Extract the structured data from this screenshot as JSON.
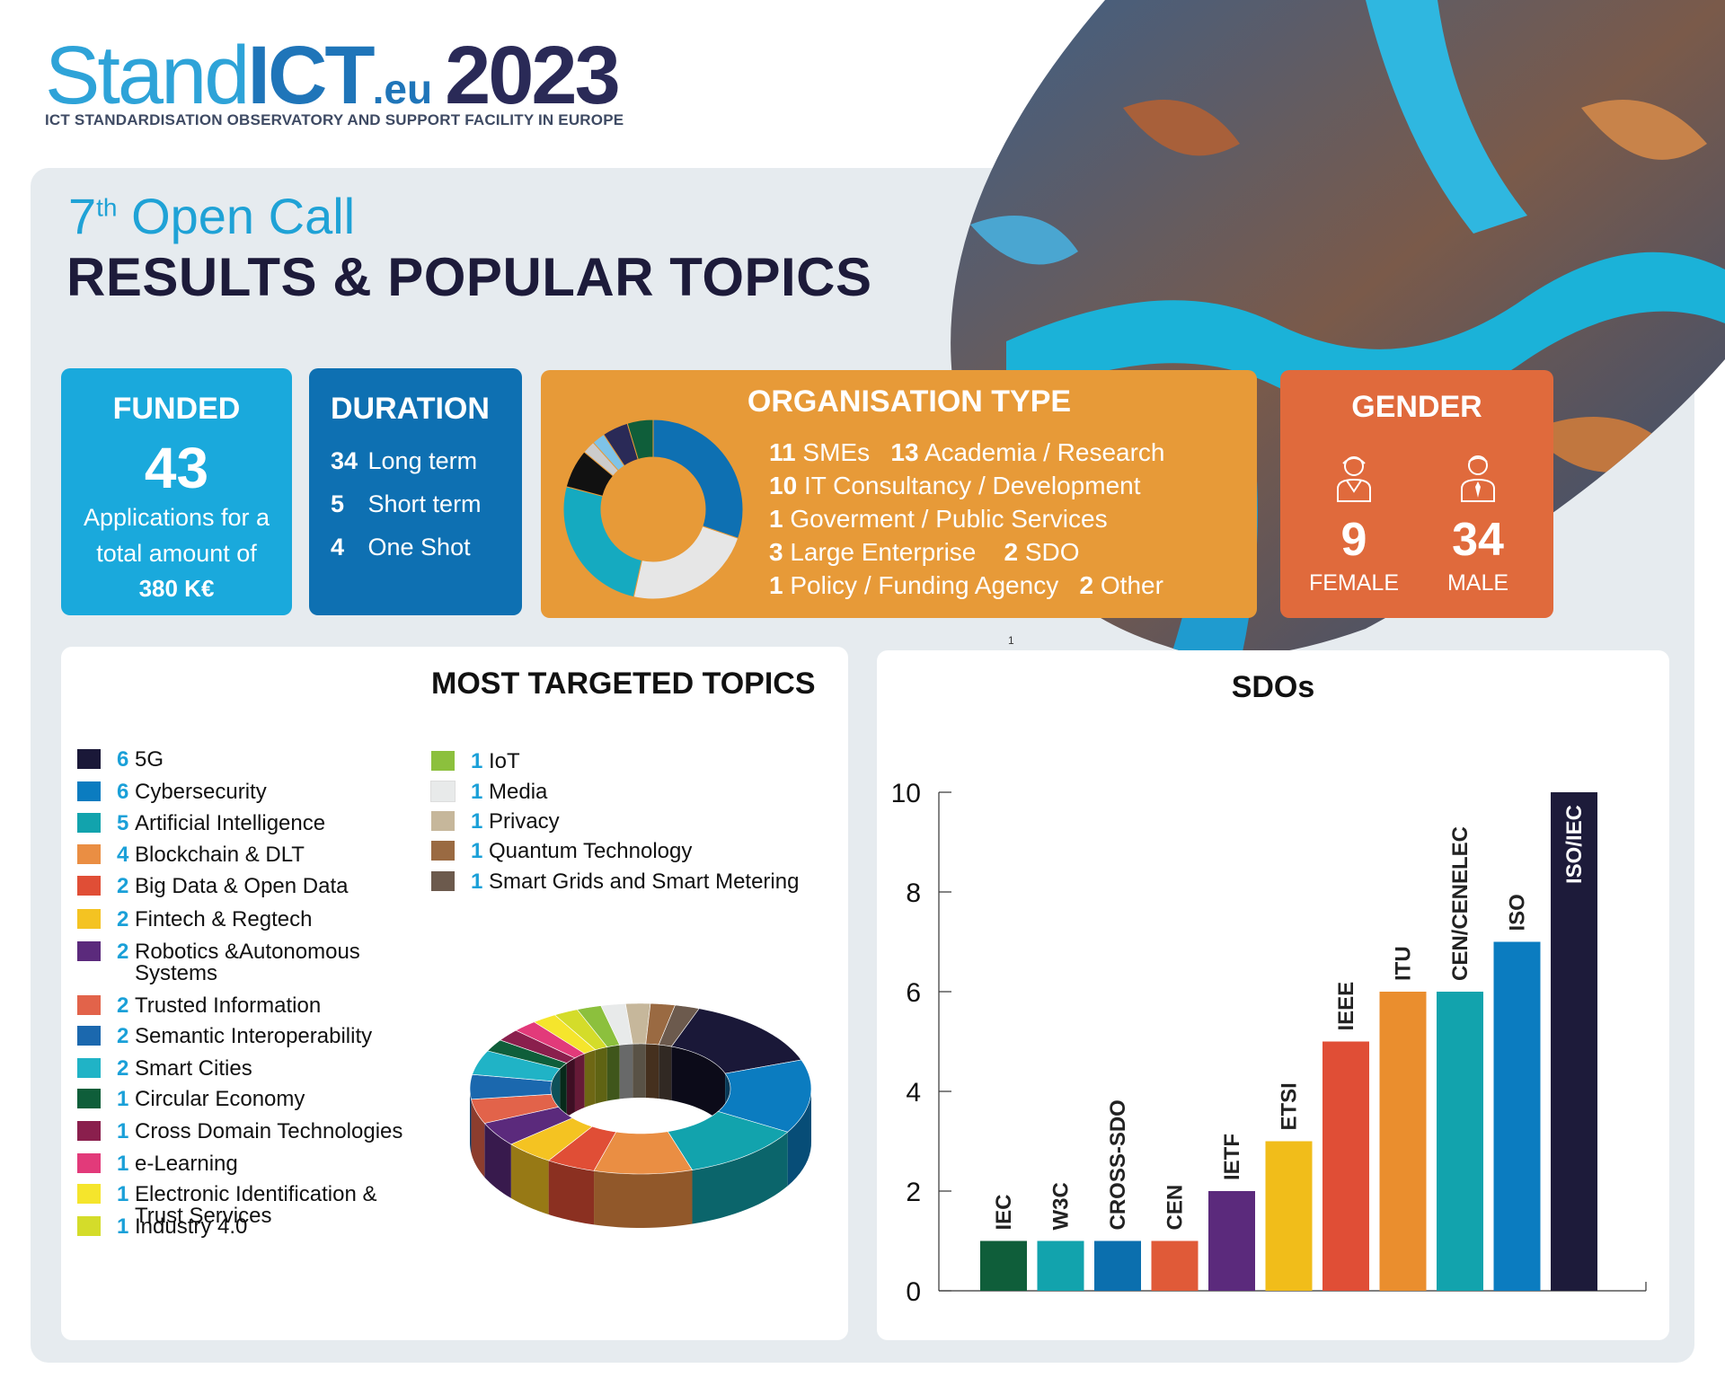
{
  "header": {
    "logo_stand": "Stand",
    "logo_ict": "ICT",
    "logo_eu": ".eu",
    "logo_year": "2023",
    "subtitle": "ICT STANDARDISATION OBSERVATORY AND SUPPORT FACILITY IN EUROPE"
  },
  "title": {
    "call_prefix": "7",
    "call_sup": "th",
    "call_suffix": " Open Call",
    "main": "RESULTS & POPULAR TOPICS"
  },
  "funded": {
    "title": "FUNDED",
    "number": "43",
    "description": "Applications for a total amount of",
    "amount": "380 K€"
  },
  "duration": {
    "title": "DURATION",
    "rows": [
      {
        "num": "34",
        "label": "Long term"
      },
      {
        "num": "5",
        "label": "Short term"
      },
      {
        "num": "4",
        "label": "One Shot"
      }
    ]
  },
  "organisation": {
    "title": "ORGANISATION TYPE",
    "lines": [
      [
        {
          "num": "11",
          "label": "SMEs"
        },
        {
          "num": "13",
          "label": "Academia / Research"
        }
      ],
      [
        {
          "num": "10",
          "label": "IT Consultancy / Development"
        }
      ],
      [
        {
          "num": "1",
          "label": "Goverment / Public Services"
        }
      ],
      [
        {
          "num": "3",
          "label": "Large Enterprise"
        },
        {
          "num": "2",
          "label": "SDO"
        }
      ],
      [
        {
          "num": "1",
          "label": "Policy / Funding Agency"
        },
        {
          "num": "2",
          "label": "Other"
        }
      ]
    ],
    "colors": {
      "Academia / Research": "#0e70b2",
      "IT Consultancy / Development": "#e6e6e6",
      "SMEs": "#15aac0",
      "Large Enterprise": "#111111",
      "Policy / Funding Agency": "#cccccc",
      "Goverment / Public Services": "#7ec3e8",
      "SDO": "#2a2a57",
      "Other": "#0f5e3a"
    }
  },
  "gender": {
    "title": "GENDER",
    "female_value": "9",
    "female_label": "FEMALE",
    "male_value": "34",
    "male_label": "MALE"
  },
  "topics": {
    "title": "MOST TARGETED TOPICS",
    "items": [
      {
        "num": "6",
        "label": "5G",
        "color": "#1a1838"
      },
      {
        "num": "6",
        "label": "Cybersecurity",
        "color": "#0b7cc0"
      },
      {
        "num": "5",
        "label": "Artificial Intelligence",
        "color": "#12a3ad"
      },
      {
        "num": "4",
        "label": "Blockchain & DLT",
        "color": "#ea8e43"
      },
      {
        "num": "2",
        "label": "Big Data & Open Data",
        "color": "#e04e36"
      },
      {
        "num": "2",
        "label": "Fintech & Regtech",
        "color": "#f4c322"
      },
      {
        "num": "2",
        "label": "Robotics &Autonomous Systems",
        "color": "#5b2a7c"
      },
      {
        "num": "2",
        "label": "Trusted Information",
        "color": "#e2634a"
      },
      {
        "num": "2",
        "label": "Semantic Interoperability",
        "color": "#1b68ae"
      },
      {
        "num": "2",
        "label": "Smart Cities",
        "color": "#20b3c6"
      },
      {
        "num": "1",
        "label": "Circular Economy",
        "color": "#0f5e3a"
      },
      {
        "num": "1",
        "label": "Cross Domain Technologies",
        "color": "#8a1f4d"
      },
      {
        "num": "1",
        "label": "e-Learning",
        "color": "#e23a7a"
      },
      {
        "num": "1",
        "label": "Electronic Identification & Trust Services",
        "color": "#f5e52c"
      },
      {
        "num": "1",
        "label": "Industry 4.0",
        "color": "#d4dc2a"
      },
      {
        "num": "1",
        "label": "IoT",
        "color": "#8cc03d"
      },
      {
        "num": "1",
        "label": "Media",
        "color": "#e8eaea"
      },
      {
        "num": "1",
        "label": "Privacy",
        "color": "#c6b79b"
      },
      {
        "num": "1",
        "label": "Quantum Technology",
        "color": "#9a6a42"
      },
      {
        "num": "1",
        "label": "Smart Grids and Smart Metering",
        "color": "#6c5a4d"
      }
    ]
  },
  "tiny_mark": "1",
  "chart_data": [
    {
      "type": "pie",
      "title": "ORGANISATION TYPE",
      "categories": [
        "Academia / Research",
        "IT Consultancy / Development",
        "SMEs",
        "Large Enterprise",
        "Policy / Funding Agency",
        "Goverment / Public Services",
        "SDO",
        "Other"
      ],
      "values": [
        13,
        10,
        11,
        3,
        1,
        1,
        2,
        2
      ]
    },
    {
      "type": "pie",
      "title": "MOST TARGETED TOPICS",
      "categories": [
        "5G",
        "Cybersecurity",
        "Artificial Intelligence",
        "Blockchain & DLT",
        "Big Data & Open Data",
        "Fintech & Regtech",
        "Robotics &Autonomous Systems",
        "Trusted Information",
        "Semantic Interoperability",
        "Smart Cities",
        "Circular Economy",
        "Cross Domain Technologies",
        "e-Learning",
        "Electronic Identification & Trust Services",
        "Industry 4.0",
        "IoT",
        "Media",
        "Privacy",
        "Quantum Technology",
        "Smart Grids and Smart Metering"
      ],
      "values": [
        6,
        6,
        5,
        4,
        2,
        2,
        2,
        2,
        2,
        2,
        1,
        1,
        1,
        1,
        1,
        1,
        1,
        1,
        1,
        1
      ]
    },
    {
      "type": "bar",
      "title": "SDOs",
      "categories": [
        "IEC",
        "W3C",
        "CROSS-SDO",
        "CEN",
        "IETF",
        "ETSI",
        "IEEE",
        "ITU",
        "CEN/CENELEC",
        "ISO",
        "ISO/IEC"
      ],
      "values": [
        1,
        1,
        1,
        1,
        2,
        3,
        5,
        6,
        6,
        7,
        10
      ],
      "colors": [
        "#0f5e3a",
        "#12a3ad",
        "#0b6fae",
        "#e05a38",
        "#5b2a7c",
        "#f1bd1a",
        "#e04e36",
        "#ea8e2e",
        "#12a3ad",
        "#0b7cc0",
        "#1d1b3a"
      ],
      "yticks": [
        0,
        2,
        4,
        6,
        8,
        10
      ],
      "ylim": [
        0,
        10
      ],
      "grid": false
    }
  ]
}
